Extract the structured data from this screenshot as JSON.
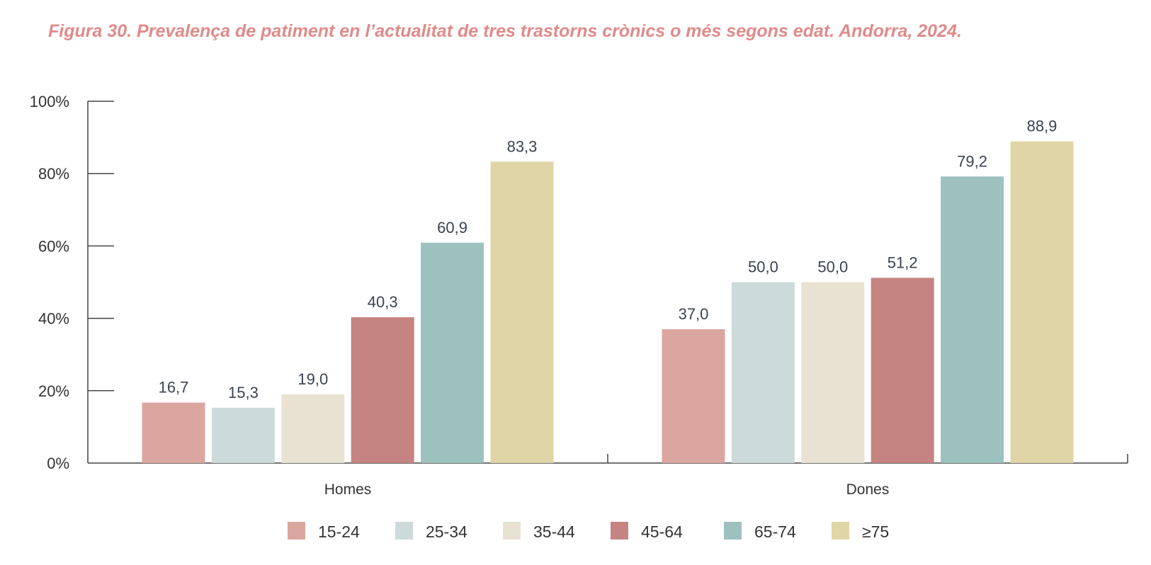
{
  "chart_data": {
    "type": "bar",
    "title": "Figura 30. Prevalença de patiment en l’actualitat de tres trastorns crònics o més segons edat. Andorra, 2024.",
    "xlabel": "",
    "ylabel": "",
    "ylim": [
      0,
      100
    ],
    "yticks": [
      0,
      20,
      40,
      60,
      80,
      100
    ],
    "ytick_labels": [
      "0%",
      "20%",
      "40%",
      "60%",
      "80%",
      "100%"
    ],
    "categories": [
      "Homes",
      "Dones"
    ],
    "series": [
      {
        "name": "15-24",
        "color": "#dca6a0",
        "values": [
          16.7,
          37.0
        ],
        "labels": [
          "16,7",
          "37,0"
        ]
      },
      {
        "name": "25-34",
        "color": "#ccdadb",
        "values": [
          15.3,
          50.0
        ],
        "labels": [
          "15,3",
          "50,0"
        ]
      },
      {
        "name": "35-44",
        "color": "#e9e2d3",
        "values": [
          19.0,
          50.0
        ],
        "labels": [
          "19,0",
          "50,0"
        ]
      },
      {
        "name": "45-64",
        "color": "#c58481",
        "values": [
          40.3,
          51.2
        ],
        "labels": [
          "40,3",
          "51,2"
        ]
      },
      {
        "name": "65-74",
        "color": "#9cc1be",
        "values": [
          60.9,
          79.2
        ],
        "labels": [
          "60,9",
          "79,2"
        ]
      },
      {
        "name": "≥75",
        "color": "#e0d5a6",
        "values": [
          83.3,
          88.9
        ],
        "labels": [
          "83,3",
          "88,9"
        ]
      }
    ],
    "legend_position": "bottom",
    "grid": false
  }
}
